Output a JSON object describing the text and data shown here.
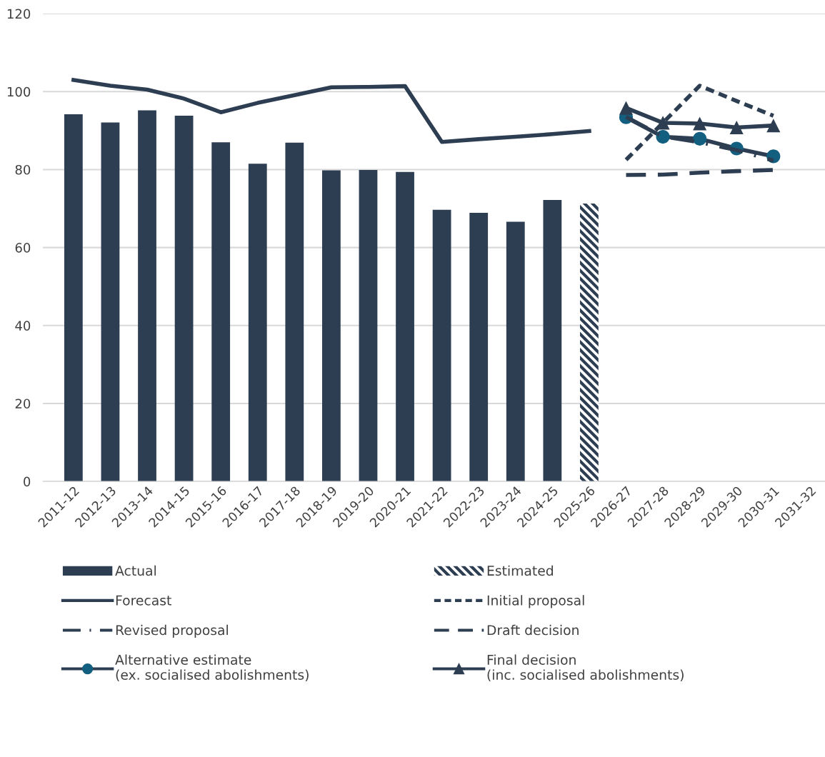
{
  "chart_data": {
    "type": "bar",
    "categories": [
      "2011-12",
      "2012-13",
      "2013-14",
      "2014-15",
      "2015-16",
      "2016-17",
      "2017-18",
      "2018-19",
      "2019-20",
      "2020-21",
      "2021-22",
      "2022-23",
      "2023-24",
      "2024-25",
      "2025-26",
      "2026-27",
      "2027-28",
      "2028-29",
      "2029-30",
      "2030-31",
      "2031-32"
    ],
    "series": [
      {
        "name": "Actual",
        "color": "#2e3e52",
        "line_style": "solid",
        "values": [
          94.2,
          92.1,
          95.2,
          93.8,
          87.0,
          81.5,
          86.9,
          79.8,
          79.9,
          79.4,
          69.7,
          68.9,
          66.6,
          72.2,
          null,
          null,
          null,
          null,
          null,
          null,
          null
        ]
      },
      {
        "name": "Forecast",
        "type": "line",
        "color": "#2e3e52",
        "line_style": "solid",
        "marker": "none",
        "values": [
          103.0,
          101.5,
          100.5,
          98.2,
          94.7,
          97.1,
          99.1,
          101.1,
          101.2,
          101.4,
          87.1,
          87.8,
          88.4,
          89.1,
          89.9,
          null,
          null,
          null,
          null,
          null,
          null
        ]
      },
      {
        "name": "Revised proposal",
        "type": "line",
        "color": "#2e3e52",
        "line_style": "dashdot",
        "marker": "none",
        "values": [
          null,
          null,
          null,
          null,
          null,
          null,
          null,
          null,
          null,
          null,
          null,
          null,
          null,
          null,
          null,
          93.5,
          88.5,
          87.0,
          85.0,
          82.3,
          null
        ]
      },
      {
        "name": "Alternative estimate\n(ex. socialised abolishments)",
        "type": "line",
        "color": "#2e3e52",
        "colors": [
          null,
          null,
          null,
          null,
          null,
          null,
          null,
          null,
          null,
          null,
          null,
          null,
          null,
          null,
          null,
          "#135f7f",
          "#135f7f",
          "#135f7f",
          "#135f7f",
          "#135f7f",
          null
        ],
        "line_style": "solid",
        "marker": "circle",
        "values": [
          null,
          null,
          null,
          null,
          null,
          null,
          null,
          null,
          null,
          null,
          null,
          null,
          null,
          null,
          null,
          93.4,
          88.4,
          87.9,
          85.4,
          83.4,
          null
        ]
      },
      {
        "name": "Estimated",
        "color": "#2e3e52",
        "line_style": "dashed",
        "values": [
          null,
          null,
          null,
          null,
          null,
          null,
          null,
          null,
          null,
          null,
          null,
          null,
          null,
          null,
          71.3,
          null,
          null,
          null,
          null,
          null,
          null
        ]
      },
      {
        "name": "Initial proposal",
        "type": "line",
        "color": "#2e3e52",
        "line_style": "dotted",
        "marker": "none",
        "values": [
          null,
          null,
          null,
          null,
          null,
          null,
          null,
          null,
          null,
          null,
          null,
          null,
          null,
          null,
          null,
          82.5,
          92.0,
          101.5,
          97.6,
          93.8,
          null
        ]
      },
      {
        "name": "Draft decision",
        "type": "line",
        "color": "#2e3e52",
        "line_style": "dashed",
        "marker": "none",
        "values": [
          null,
          null,
          null,
          null,
          null,
          null,
          null,
          null,
          null,
          null,
          null,
          null,
          null,
          null,
          null,
          78.6,
          78.7,
          79.2,
          79.6,
          79.9,
          null
        ]
      },
      {
        "name": "Final decision\n(inc. socialised abolishments)",
        "type": "line",
        "color": "#2e3e52",
        "line_style": "solid",
        "marker": "triangle",
        "values": [
          null,
          null,
          null,
          null,
          null,
          null,
          null,
          null,
          null,
          null,
          null,
          null,
          null,
          null,
          null,
          95.8,
          92.0,
          91.8,
          90.8,
          91.3,
          null
        ]
      }
    ],
    "ylim": [
      0,
      120
    ],
    "yticks": [
      0,
      20,
      40,
      60,
      80,
      100,
      120
    ],
    "grid": "y",
    "legend": "bottom"
  }
}
